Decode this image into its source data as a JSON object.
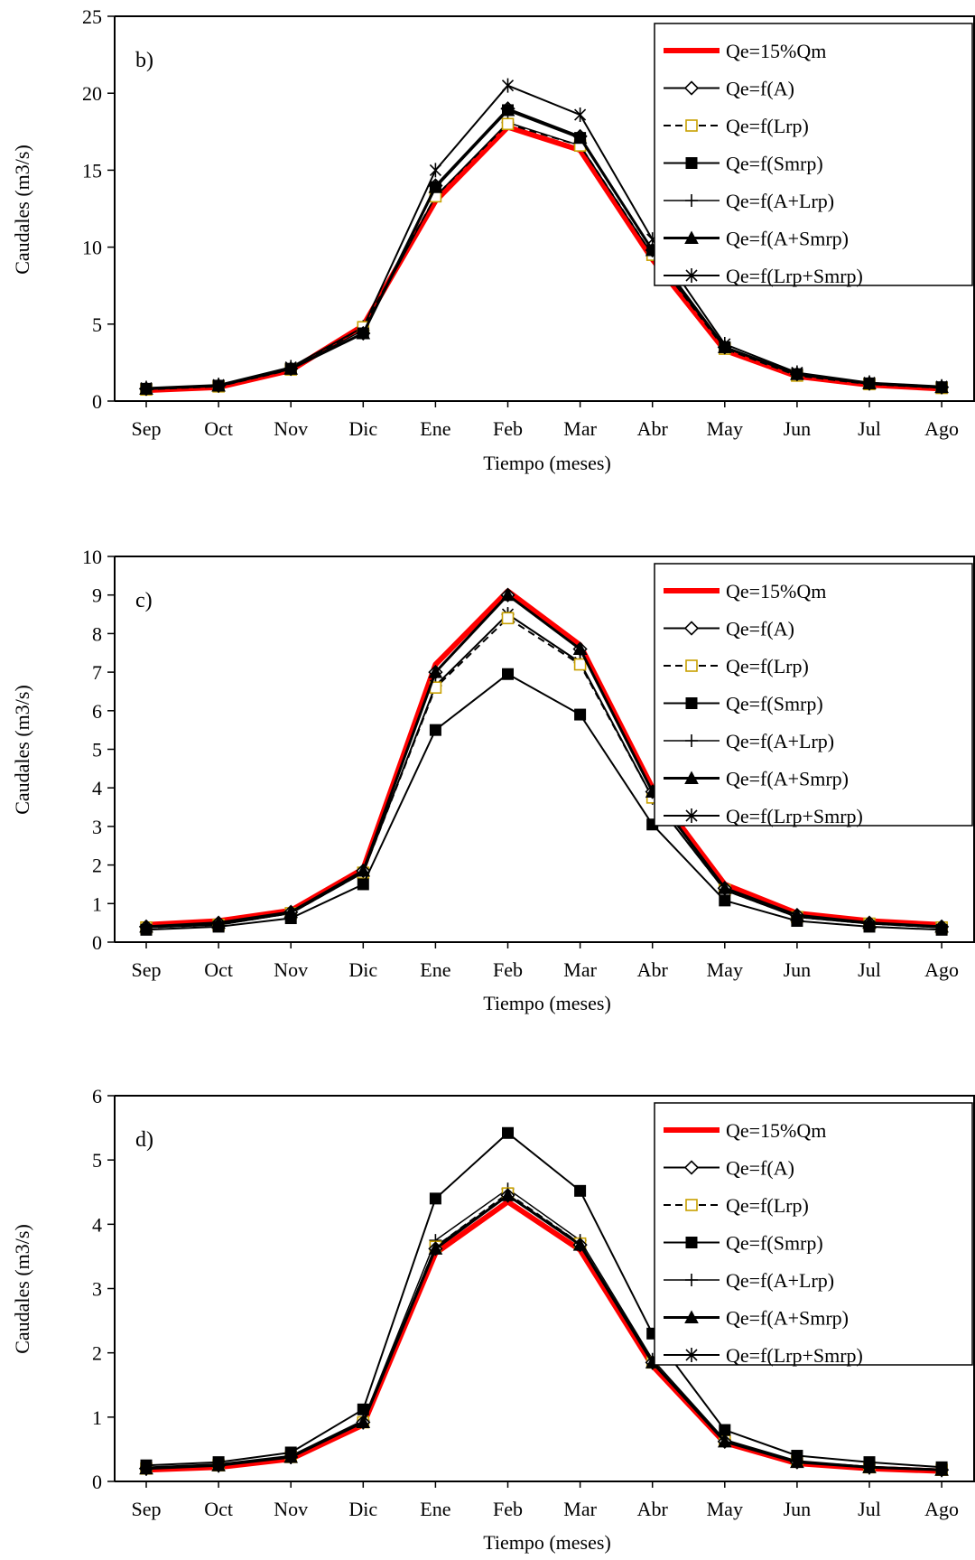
{
  "chart_data": [
    {
      "type": "line",
      "panel_label": "b)",
      "xlabel": "Tiempo (meses)",
      "ylabel": "Caudales (m3/s)",
      "ylim": [
        0,
        25
      ],
      "yticks": [
        0,
        5,
        10,
        15,
        20,
        25
      ],
      "categories": [
        "Sep",
        "Oct",
        "Nov",
        "Dic",
        "Ene",
        "Feb",
        "Mar",
        "Abr",
        "May",
        "Jun",
        "Jul",
        "Ago"
      ],
      "legend_position": "top-right",
      "series": [
        {
          "name": "Qe=15%Qm",
          "marker": "none",
          "values": [
            0.7,
            0.9,
            2.0,
            4.9,
            13.0,
            17.8,
            16.3,
            9.2,
            3.3,
            1.6,
            1.05,
            0.8
          ]
        },
        {
          "name": "Qe=f(A)",
          "marker": "diamond",
          "values": [
            0.8,
            1.0,
            2.1,
            4.4,
            14.0,
            19.0,
            17.2,
            9.8,
            3.5,
            1.75,
            1.15,
            0.9
          ]
        },
        {
          "name": "Qe=f(Lrp)",
          "marker": "square-open",
          "values": [
            0.75,
            0.95,
            2.05,
            4.8,
            13.3,
            18.0,
            16.6,
            9.5,
            3.4,
            1.65,
            1.1,
            0.85
          ]
        },
        {
          "name": "Qe=f(Smrp)",
          "marker": "square",
          "values": [
            0.8,
            1.0,
            2.1,
            4.4,
            13.9,
            18.9,
            17.1,
            9.8,
            3.5,
            1.75,
            1.15,
            0.9
          ]
        },
        {
          "name": "Qe=f(A+Lrp)",
          "marker": "plus",
          "values": [
            0.8,
            1.0,
            2.1,
            4.6,
            13.3,
            18.1,
            16.6,
            9.5,
            3.5,
            1.7,
            1.1,
            0.85
          ]
        },
        {
          "name": "Qe=f(A+Smrp)",
          "marker": "triangle",
          "values": [
            0.8,
            1.0,
            2.1,
            4.4,
            13.9,
            18.9,
            17.1,
            9.8,
            3.5,
            1.75,
            1.15,
            0.9
          ]
        },
        {
          "name": "Qe=f(Lrp+Smrp)",
          "marker": "star",
          "values": [
            0.85,
            1.05,
            2.2,
            4.8,
            15.0,
            20.5,
            18.6,
            10.5,
            3.7,
            1.85,
            1.2,
            0.95
          ]
        }
      ]
    },
    {
      "type": "line",
      "panel_label": "c)",
      "xlabel": "Tiempo (meses)",
      "ylabel": "Caudales (m3/s)",
      "ylim": [
        0,
        10
      ],
      "yticks": [
        0,
        1,
        2,
        3,
        4,
        5,
        6,
        7,
        8,
        9,
        10
      ],
      "categories": [
        "Sep",
        "Oct",
        "Nov",
        "Dic",
        "Ene",
        "Feb",
        "Mar",
        "Abr",
        "May",
        "Jun",
        "Jul",
        "Ago"
      ],
      "legend_position": "top-right",
      "series": [
        {
          "name": "Qe=15%Qm",
          "marker": "none",
          "values": [
            0.45,
            0.55,
            0.82,
            1.9,
            7.2,
            9.1,
            7.7,
            4.0,
            1.5,
            0.75,
            0.55,
            0.45
          ]
        },
        {
          "name": "Qe=f(A)",
          "marker": "diamond",
          "values": [
            0.4,
            0.5,
            0.78,
            1.85,
            7.0,
            9.0,
            7.6,
            3.9,
            1.4,
            0.7,
            0.5,
            0.4
          ]
        },
        {
          "name": "Qe=f(Lrp)",
          "marker": "square-open",
          "values": [
            0.38,
            0.45,
            0.75,
            1.8,
            6.6,
            8.4,
            7.2,
            3.75,
            1.35,
            0.65,
            0.48,
            0.38
          ]
        },
        {
          "name": "Qe=f(Smrp)",
          "marker": "square",
          "values": [
            0.32,
            0.4,
            0.62,
            1.5,
            5.5,
            6.95,
            5.9,
            3.05,
            1.08,
            0.55,
            0.4,
            0.32
          ]
        },
        {
          "name": "Qe=f(A+Lrp)",
          "marker": "plus",
          "values": [
            0.38,
            0.45,
            0.75,
            1.8,
            6.65,
            8.5,
            7.25,
            3.75,
            1.35,
            0.65,
            0.48,
            0.38
          ]
        },
        {
          "name": "Qe=f(A+Smrp)",
          "marker": "triangle",
          "values": [
            0.4,
            0.5,
            0.78,
            1.85,
            7.0,
            9.0,
            7.6,
            3.9,
            1.4,
            0.7,
            0.5,
            0.4
          ]
        },
        {
          "name": "Qe=f(Lrp+Smrp)",
          "marker": "star",
          "values": [
            0.38,
            0.45,
            0.75,
            1.8,
            6.65,
            8.5,
            7.25,
            3.75,
            1.35,
            0.65,
            0.48,
            0.38
          ]
        }
      ]
    },
    {
      "type": "line",
      "panel_label": "d)",
      "xlabel": "Tiempo (meses)",
      "ylabel": "Caudales (m3/s)",
      "ylim": [
        0,
        6
      ],
      "yticks": [
        0,
        1,
        2,
        3,
        4,
        5,
        6
      ],
      "categories": [
        "Sep",
        "Oct",
        "Nov",
        "Dic",
        "Ene",
        "Feb",
        "Mar",
        "Abr",
        "May",
        "Jun",
        "Jul",
        "Ago"
      ],
      "legend_position": "top-right",
      "series": [
        {
          "name": "Qe=15%Qm",
          "marker": "none",
          "values": [
            0.18,
            0.22,
            0.35,
            0.88,
            3.55,
            4.35,
            3.6,
            1.8,
            0.6,
            0.28,
            0.2,
            0.16
          ]
        },
        {
          "name": "Qe=f(A)",
          "marker": "diamond",
          "values": [
            0.2,
            0.25,
            0.38,
            0.92,
            3.62,
            4.45,
            3.68,
            1.85,
            0.62,
            0.3,
            0.22,
            0.18
          ]
        },
        {
          "name": "Qe=f(Lrp)",
          "marker": "square-open",
          "values": [
            0.2,
            0.25,
            0.38,
            0.92,
            3.65,
            4.48,
            3.7,
            1.85,
            0.63,
            0.31,
            0.22,
            0.18
          ]
        },
        {
          "name": "Qe=f(Smrp)",
          "marker": "square",
          "values": [
            0.25,
            0.3,
            0.45,
            1.12,
            4.4,
            5.42,
            4.52,
            2.3,
            0.8,
            0.4,
            0.3,
            0.22
          ]
        },
        {
          "name": "Qe=f(A+Lrp)",
          "marker": "plus",
          "values": [
            0.22,
            0.27,
            0.4,
            0.95,
            3.75,
            4.55,
            3.75,
            1.9,
            0.65,
            0.32,
            0.23,
            0.19
          ]
        },
        {
          "name": "Qe=f(A+Smrp)",
          "marker": "triangle",
          "values": [
            0.2,
            0.25,
            0.38,
            0.92,
            3.62,
            4.45,
            3.68,
            1.85,
            0.62,
            0.3,
            0.22,
            0.18
          ]
        },
        {
          "name": "Qe=f(Lrp+Smrp)",
          "marker": "star",
          "values": [
            0.2,
            0.25,
            0.38,
            0.92,
            3.65,
            4.45,
            3.7,
            1.85,
            0.63,
            0.31,
            0.22,
            0.18
          ]
        }
      ]
    }
  ],
  "colors": {
    "reference_line": "#ff0000",
    "series_line": "#000000",
    "lrp_marker": "#c8a000",
    "axis": "#000000"
  }
}
